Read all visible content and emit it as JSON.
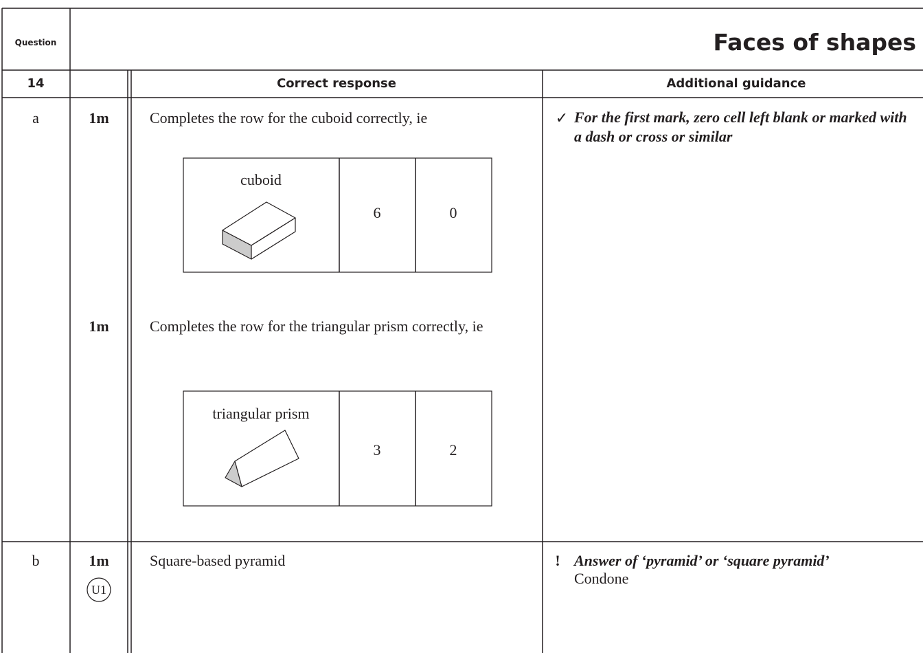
{
  "header": {
    "question_label": "Question",
    "title": "Faces of shapes"
  },
  "columns": {
    "question_number": "14",
    "response": "Correct response",
    "guidance": "Additional guidance"
  },
  "rows": [
    {
      "part": "a",
      "marks": [
        {
          "mark": "1m",
          "response": "Completes the row for the cuboid correctly, ie",
          "table": {
            "shape": "cuboid",
            "cells": [
              6,
              0
            ]
          }
        },
        {
          "mark": "1m",
          "response": "Completes the row for the triangular prism correctly, ie",
          "table": {
            "shape": "triangular prism",
            "cells": [
              3,
              2
            ]
          }
        }
      ],
      "guidance": {
        "symbol": "✓",
        "text": "For the first mark, zero cell left blank or marked with a dash or cross or similar"
      }
    },
    {
      "part": "b",
      "marks": [
        {
          "mark": "1m",
          "code": "U1",
          "response": "Square-based pyramid"
        }
      ],
      "guidance": {
        "symbol": "!",
        "text": "Answer of ‘pyramid’ or ‘square pyramid’",
        "note": "Condone"
      }
    }
  ]
}
